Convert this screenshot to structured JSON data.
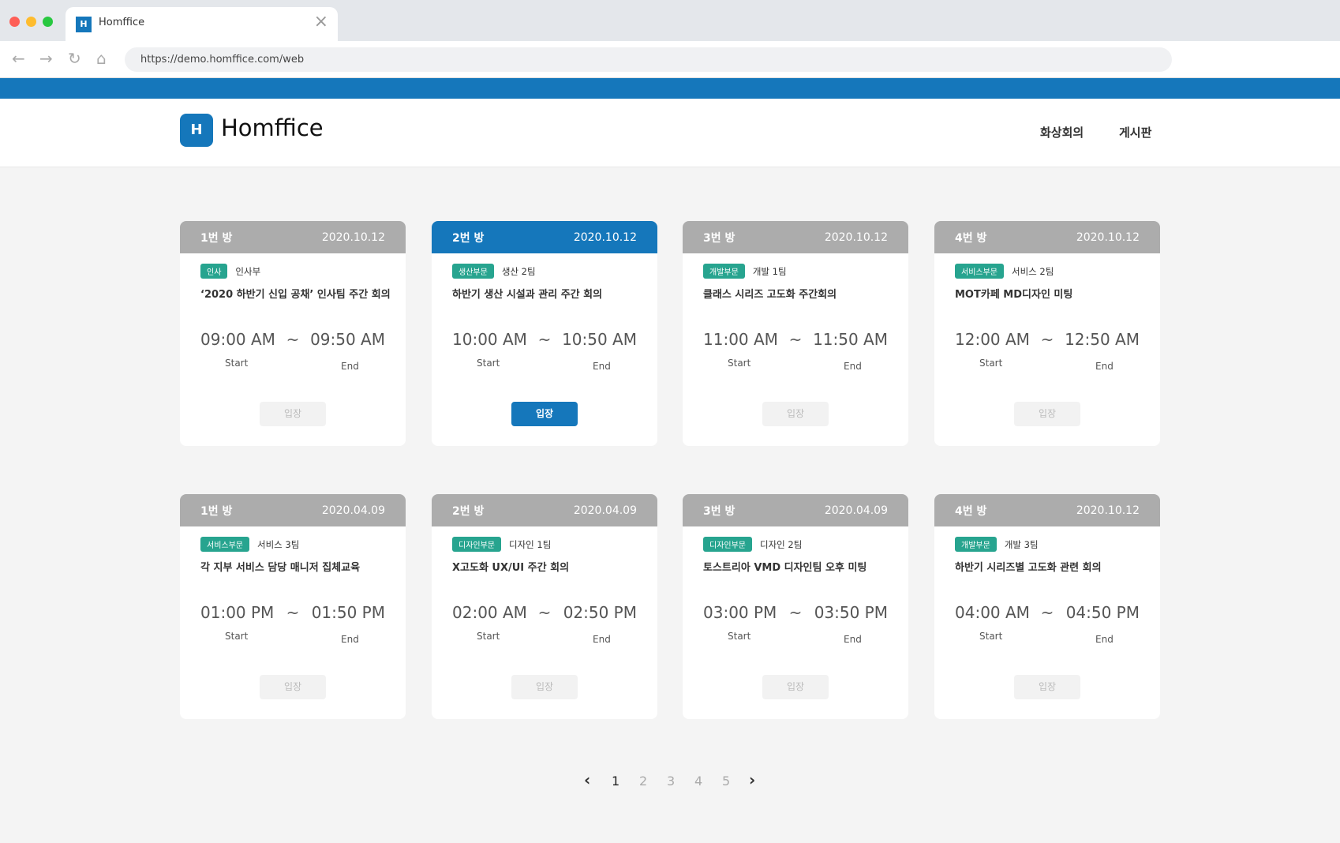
{
  "browser": {
    "tab_title": "Homffice",
    "url": "https://demo.homffice.com/web"
  },
  "header": {
    "logo": "Homffice",
    "nav": [
      "화상회의",
      "게시판"
    ]
  },
  "colors": {
    "brand": "#1577bb",
    "tag": "#27a48f",
    "inactive_header": "#acacac"
  },
  "labels": {
    "start": "Start",
    "end": "End",
    "enter": "입장",
    "tilde": "~"
  },
  "rooms": [
    {
      "room": "1번 방",
      "date": "2020.10.12",
      "tag": "인사",
      "team": "인사부",
      "title": "‘2020 하반기 신입 공채’ 인사팀 주간 회의",
      "start": "09:00 AM",
      "end": "09:50 AM",
      "active": false
    },
    {
      "room": "2번 방",
      "date": "2020.10.12",
      "tag": "생산부문",
      "team": "생산 2팀",
      "title": "하반기 생산 시설과 관리 주간 회의",
      "start": "10:00 AM",
      "end": "10:50 AM",
      "active": true
    },
    {
      "room": "3번 방",
      "date": "2020.10.12",
      "tag": "개발부문",
      "team": "개발 1팀",
      "title": "클래스 시리즈 고도화 주간회의",
      "start": "11:00 AM",
      "end": "11:50 AM",
      "active": false
    },
    {
      "room": "4번 방",
      "date": "2020.10.12",
      "tag": "서비스부문",
      "team": "서비스 2팀",
      "title": "MOT카페 MD디자인 미팅",
      "start": "12:00 AM",
      "end": "12:50 AM",
      "active": false
    },
    {
      "room": "1번 방",
      "date": "2020.04.09",
      "tag": "서비스부문",
      "team": "서비스 3팀",
      "title": "각 지부 서비스 담당 매니저 집체교육",
      "start": "01:00 PM",
      "end": "01:50 PM",
      "active": false
    },
    {
      "room": "2번 방",
      "date": "2020.04.09",
      "tag": "디자인부문",
      "team": "디자인 1팀",
      "title": "X고도화 UX/UI 주간 회의",
      "start": "02:00 AM",
      "end": "02:50 PM",
      "active": false
    },
    {
      "room": "3번 방",
      "date": "2020.04.09",
      "tag": "디자인부문",
      "team": "디자인 2팀",
      "title": "토스트리아 VMD 디자인팀 오후 미팅",
      "start": "03:00 PM",
      "end": "03:50 PM",
      "active": false
    },
    {
      "room": "4번 방",
      "date": "2020.10.12",
      "tag": "개발부문",
      "team": "개발 3팀",
      "title": "하반기 시리즈별 고도화 관련 회의",
      "start": "04:00 AM",
      "end": "04:50 PM",
      "active": false
    }
  ],
  "pagination": {
    "prev": "‹",
    "pages": [
      "1",
      "2",
      "3",
      "4",
      "5"
    ],
    "current": "1",
    "next": "›"
  }
}
